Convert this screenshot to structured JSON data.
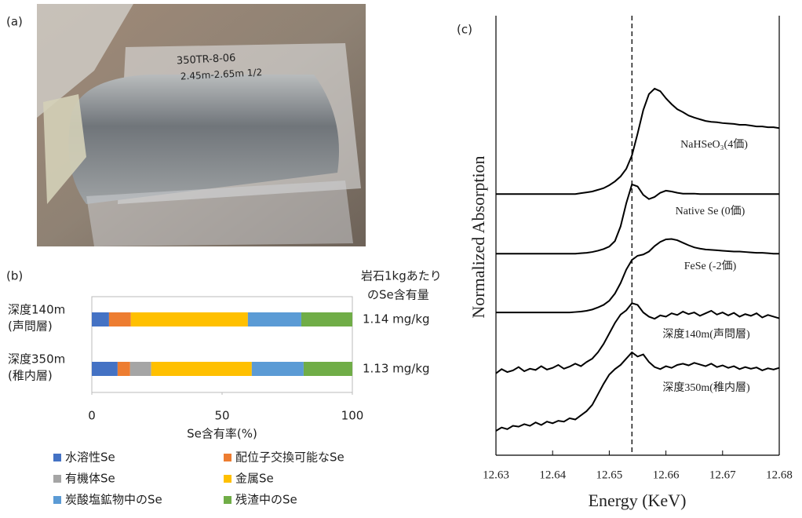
{
  "photo": {
    "label": "(a)",
    "texts": [
      "350TR-8-06",
      "2.45m-2.65m 1/2"
    ]
  },
  "chart_data": [
    {
      "type": "hbar-stacked",
      "label": "(b)",
      "categories": [
        [
          "深度140m",
          "(声問層)"
        ],
        [
          "深度350m",
          "(稚内層)"
        ]
      ],
      "side_header": [
        "岩石1kgあたり",
        "のSe含有量"
      ],
      "side_values": [
        "1.14 mg/kg",
        "1.13 mg/kg"
      ],
      "xlabel": "Se含有率(%)",
      "xlim": [
        0,
        100
      ],
      "xticks": [
        0,
        50,
        100
      ],
      "series": [
        {
          "name": "水溶性Se",
          "color": "#4472c4",
          "values": [
            6.6,
            9.9
          ]
        },
        {
          "name": "配位子交換可能なSe",
          "color": "#ed7d31",
          "values": [
            8.4,
            4.8
          ]
        },
        {
          "name": "有機体Se",
          "color": "#a5a5a5",
          "values": [
            0,
            8.1
          ]
        },
        {
          "name": "金属Se",
          "color": "#ffc000",
          "values": [
            44.9,
            38.6
          ]
        },
        {
          "name": "炭酸塩鉱物中のSe",
          "color": "#5b9bd5",
          "values": [
            20.5,
            19.9
          ]
        },
        {
          "name": "残渣中のSe",
          "color": "#70ad47",
          "values": [
            19.6,
            18.7
          ]
        }
      ]
    },
    {
      "type": "line",
      "label": "(c)",
      "xlabel": "Energy (KeV)",
      "ylabel": "Normalized Absorption",
      "xlim": [
        12.63,
        12.68
      ],
      "xticks": [
        12.63,
        12.64,
        12.65,
        12.66,
        12.67,
        12.68
      ],
      "ylim": [
        0,
        10
      ],
      "vline": 12.654,
      "x": [
        12.63,
        12.631,
        12.632,
        12.633,
        12.634,
        12.635,
        12.636,
        12.637,
        12.638,
        12.639,
        12.64,
        12.641,
        12.642,
        12.643,
        12.644,
        12.645,
        12.646,
        12.647,
        12.648,
        12.649,
        12.65,
        12.651,
        12.652,
        12.653,
        12.654,
        12.655,
        12.656,
        12.657,
        12.658,
        12.659,
        12.66,
        12.661,
        12.662,
        12.663,
        12.664,
        12.665,
        12.666,
        12.667,
        12.668,
        12.669,
        12.67,
        12.671,
        12.672,
        12.673,
        12.674,
        12.675,
        12.676,
        12.677,
        12.678,
        12.679,
        12.68
      ],
      "series": [
        {
          "name": "NaHSeO₃(4価)",
          "color": "#000000",
          "values": [
            6.22,
            6.22,
            6.22,
            6.22,
            6.22,
            6.22,
            6.22,
            6.22,
            6.22,
            6.22,
            6.22,
            6.22,
            6.22,
            6.22,
            6.22,
            6.24,
            6.26,
            6.28,
            6.32,
            6.36,
            6.43,
            6.52,
            6.64,
            6.82,
            7.14,
            7.66,
            8.22,
            8.6,
            8.73,
            8.67,
            8.5,
            8.36,
            8.24,
            8.17,
            8.09,
            8.04,
            8.0,
            7.96,
            7.94,
            7.93,
            7.91,
            7.9,
            7.89,
            7.87,
            7.87,
            7.85,
            7.83,
            7.83,
            7.81,
            7.81,
            7.79
          ]
        },
        {
          "name": "Native Se (0価)",
          "color": "#000000",
          "values": [
            4.8,
            4.8,
            4.8,
            4.8,
            4.8,
            4.8,
            4.8,
            4.8,
            4.8,
            4.8,
            4.8,
            4.8,
            4.8,
            4.8,
            4.8,
            4.81,
            4.82,
            4.84,
            4.87,
            4.91,
            4.97,
            5.1,
            5.45,
            6.0,
            6.45,
            6.4,
            6.2,
            6.1,
            6.15,
            6.25,
            6.3,
            6.28,
            6.25,
            6.23,
            6.23,
            6.23,
            6.22,
            6.22,
            6.22,
            6.22,
            6.22,
            6.22,
            6.22,
            6.22,
            6.22,
            6.22,
            6.22,
            6.22,
            6.22,
            6.22,
            6.22
          ]
        },
        {
          "name": "FeSe (-2価)",
          "color": "#000000",
          "values": [
            3.4,
            3.4,
            3.4,
            3.4,
            3.4,
            3.4,
            3.4,
            3.4,
            3.4,
            3.4,
            3.4,
            3.4,
            3.4,
            3.4,
            3.41,
            3.42,
            3.44,
            3.47,
            3.52,
            3.58,
            3.68,
            3.85,
            4.1,
            4.42,
            4.65,
            4.75,
            4.78,
            4.85,
            4.98,
            5.08,
            5.14,
            5.15,
            5.12,
            5.06,
            5.0,
            4.95,
            4.92,
            4.9,
            4.89,
            4.88,
            4.87,
            4.86,
            4.85,
            4.85,
            4.84,
            4.83,
            4.82,
            4.82,
            4.81,
            4.8,
            4.8
          ]
        },
        {
          "name": "深度140m(声問層)",
          "color": "#000000",
          "values": [
            1.95,
            2.05,
            1.98,
            2.02,
            2.1,
            2.0,
            2.06,
            2.03,
            2.12,
            2.04,
            2.08,
            2.15,
            2.06,
            2.11,
            2.18,
            2.12,
            2.22,
            2.3,
            2.45,
            2.65,
            2.9,
            3.15,
            3.35,
            3.45,
            3.62,
            3.58,
            3.4,
            3.3,
            3.25,
            3.33,
            3.3,
            3.38,
            3.34,
            3.42,
            3.36,
            3.4,
            3.32,
            3.38,
            3.44,
            3.35,
            3.4,
            3.33,
            3.39,
            3.3,
            3.36,
            3.32,
            3.38,
            3.28,
            3.34,
            3.3,
            3.26
          ]
        },
        {
          "name": "深度350m(稚内層)",
          "color": "#000000",
          "values": [
            0.58,
            0.66,
            0.62,
            0.7,
            0.68,
            0.74,
            0.7,
            0.78,
            0.72,
            0.8,
            0.76,
            0.82,
            0.8,
            0.88,
            0.85,
            0.95,
            1.05,
            1.2,
            1.45,
            1.7,
            1.92,
            2.05,
            2.15,
            2.3,
            2.45,
            2.35,
            2.4,
            2.22,
            2.1,
            2.05,
            2.12,
            2.08,
            2.15,
            2.18,
            2.14,
            2.2,
            2.16,
            2.12,
            2.18,
            2.1,
            2.14,
            2.08,
            2.12,
            2.05,
            2.1,
            2.06,
            2.09,
            2.02,
            2.07,
            2.04,
            2.08
          ]
        }
      ]
    }
  ]
}
